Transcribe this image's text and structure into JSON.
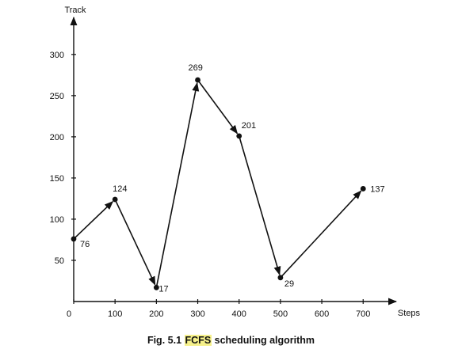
{
  "chart_data": {
    "type": "line",
    "ylabel": "Track",
    "xlabel": "Steps",
    "x_ticks": [
      0,
      100,
      200,
      300,
      400,
      500,
      600,
      700
    ],
    "y_ticks": [
      50,
      100,
      150,
      200,
      250,
      300
    ],
    "xlim": [
      0,
      780
    ],
    "ylim": [
      0,
      345
    ],
    "series": [
      {
        "x": [
          0,
          100,
          200,
          300,
          400,
          500,
          700
        ],
        "y": [
          76,
          124,
          17,
          269,
          201,
          29,
          137
        ],
        "labels": [
          "76",
          "124",
          "17",
          "269",
          "201",
          "29",
          "137"
        ]
      }
    ],
    "colors": {
      "line": "#111111",
      "caption_highlight": "#f5f08a"
    }
  },
  "caption": {
    "prefix": "Fig. 5.1",
    "highlight": "FCFS",
    "suffix": "scheduling algorithm"
  }
}
